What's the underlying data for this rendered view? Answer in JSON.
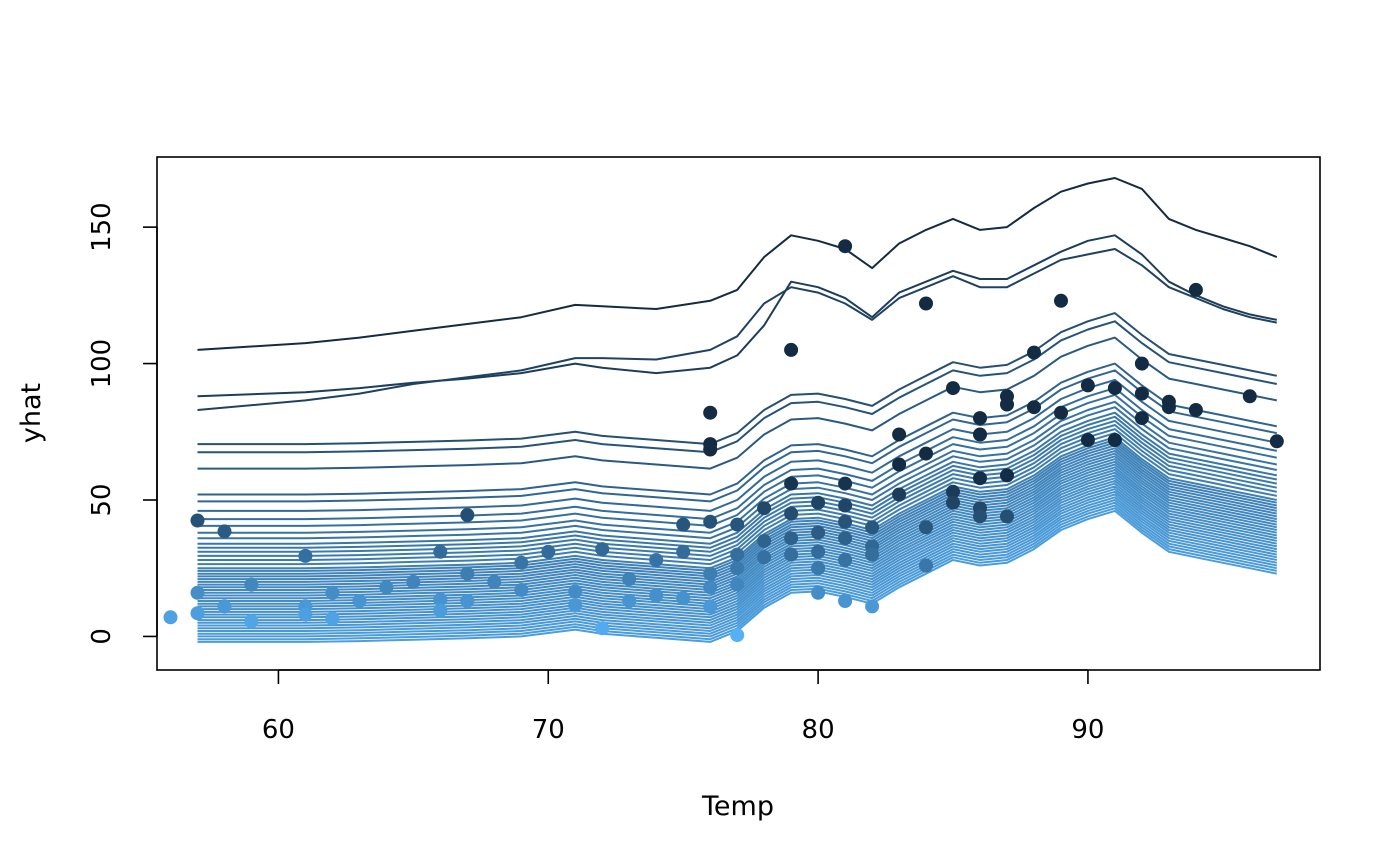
{
  "chart_data": {
    "type": "line",
    "title": "",
    "xlabel": "Temp",
    "ylabel": "yhat",
    "xlim": [
      55.5,
      98.6
    ],
    "ylim": [
      -12.3,
      175.7
    ],
    "xticks": [
      "60",
      "70",
      "80",
      "90"
    ],
    "yticks": [
      "0",
      "50",
      "100",
      "150"
    ],
    "grid": false,
    "legend": "none",
    "colors": {
      "dark": "#132b43",
      "light": "#56b1f7",
      "axis": "#000000"
    },
    "x": [
      57,
      61,
      63,
      65,
      67,
      69,
      71,
      72,
      74,
      76,
      77,
      78,
      79,
      80,
      81,
      82,
      83,
      84,
      85,
      86,
      87,
      88,
      89,
      90,
      91,
      92,
      93,
      94,
      95,
      96,
      97
    ],
    "profile": [
      0,
      0,
      0.3,
      0.8,
      1.3,
      2,
      4.5,
      3,
      1.5,
      0,
      4,
      12.5,
      18,
      18.5,
      16.5,
      14,
      20,
      25,
      30,
      28,
      29,
      34,
      41,
      45,
      48,
      40,
      33,
      31,
      29,
      27,
      25
    ],
    "series_info": "individual conditional expectation curves, one per observation",
    "series": [
      {
        "values": [
          105,
          107.5,
          109.5,
          112,
          114.5,
          117,
          121.5,
          121,
          120,
          123,
          127,
          139,
          147,
          145,
          142,
          135,
          144,
          149,
          153,
          149,
          150,
          157,
          163,
          166,
          168,
          164,
          153,
          149,
          146,
          143,
          139
        ]
      },
      {
        "values": [
          88,
          89.5,
          91,
          93,
          94.5,
          96.5,
          100,
          98.5,
          96.5,
          98.5,
          103,
          114,
          130,
          128,
          124,
          117,
          126,
          130,
          134,
          131,
          131,
          136,
          141,
          145,
          147,
          140,
          130,
          125,
          121,
          118,
          116
        ]
      },
      {
        "values": [
          83,
          86.5,
          89,
          92.5,
          95,
          97.5,
          102,
          102,
          101.5,
          105,
          110,
          122,
          128,
          126,
          122,
          116,
          124,
          128,
          132,
          128,
          128,
          133,
          138,
          140,
          142,
          136,
          128,
          124,
          120,
          117,
          115
        ]
      }
    ],
    "series_offsets": [
      70.5,
      67.5,
      61.5,
      52,
      49.5,
      46,
      43,
      40.5,
      38,
      36,
      34,
      32.5,
      31,
      29.5,
      28,
      26.5,
      25,
      24,
      23,
      22,
      21,
      20,
      19,
      18,
      17,
      16,
      15,
      14,
      13,
      12,
      11,
      10,
      9,
      8,
      7,
      6,
      5,
      4,
      3,
      2,
      1,
      0,
      -1,
      -2
    ],
    "points": [
      {
        "x": 56,
        "y": 7
      },
      {
        "x": 57,
        "y": 42.5
      },
      {
        "x": 57,
        "y": 16
      },
      {
        "x": 57,
        "y": 8.5
      },
      {
        "x": 58,
        "y": 38.5
      },
      {
        "x": 58,
        "y": 11
      },
      {
        "x": 59,
        "y": 19
      },
      {
        "x": 59,
        "y": 5.5
      },
      {
        "x": 61,
        "y": 29.5
      },
      {
        "x": 61,
        "y": 11
      },
      {
        "x": 61,
        "y": 8
      },
      {
        "x": 62,
        "y": 16
      },
      {
        "x": 62,
        "y": 6.5
      },
      {
        "x": 63,
        "y": 13
      },
      {
        "x": 64,
        "y": 18
      },
      {
        "x": 65,
        "y": 20
      },
      {
        "x": 66,
        "y": 31
      },
      {
        "x": 66,
        "y": 13.5
      },
      {
        "x": 66,
        "y": 9.5
      },
      {
        "x": 67,
        "y": 44.5
      },
      {
        "x": 67,
        "y": 23
      },
      {
        "x": 67,
        "y": 13
      },
      {
        "x": 68,
        "y": 20
      },
      {
        "x": 69,
        "y": 27
      },
      {
        "x": 69,
        "y": 17
      },
      {
        "x": 70,
        "y": 31
      },
      {
        "x": 71,
        "y": 16.5
      },
      {
        "x": 71,
        "y": 11.5
      },
      {
        "x": 72,
        "y": 32
      },
      {
        "x": 72,
        "y": 3
      },
      {
        "x": 73,
        "y": 21
      },
      {
        "x": 73,
        "y": 13
      },
      {
        "x": 74,
        "y": 28
      },
      {
        "x": 74,
        "y": 15
      },
      {
        "x": 75,
        "y": 41
      },
      {
        "x": 75,
        "y": 31
      },
      {
        "x": 75,
        "y": 14
      },
      {
        "x": 76,
        "y": 82
      },
      {
        "x": 76,
        "y": 70.5
      },
      {
        "x": 76,
        "y": 68.5
      },
      {
        "x": 76,
        "y": 42
      },
      {
        "x": 76,
        "y": 23
      },
      {
        "x": 76,
        "y": 18
      },
      {
        "x": 76,
        "y": 11
      },
      {
        "x": 77,
        "y": 41
      },
      {
        "x": 77,
        "y": 30
      },
      {
        "x": 77,
        "y": 25
      },
      {
        "x": 77,
        "y": 19
      },
      {
        "x": 77,
        "y": 0.5
      },
      {
        "x": 78,
        "y": 47
      },
      {
        "x": 78,
        "y": 35
      },
      {
        "x": 78,
        "y": 29
      },
      {
        "x": 79,
        "y": 105
      },
      {
        "x": 79,
        "y": 56
      },
      {
        "x": 79,
        "y": 45
      },
      {
        "x": 79,
        "y": 36
      },
      {
        "x": 79,
        "y": 30
      },
      {
        "x": 80,
        "y": 49
      },
      {
        "x": 80,
        "y": 38
      },
      {
        "x": 80,
        "y": 31
      },
      {
        "x": 80,
        "y": 25
      },
      {
        "x": 80,
        "y": 16
      },
      {
        "x": 81,
        "y": 143
      },
      {
        "x": 81,
        "y": 56
      },
      {
        "x": 81,
        "y": 48
      },
      {
        "x": 81,
        "y": 42
      },
      {
        "x": 81,
        "y": 36
      },
      {
        "x": 81,
        "y": 28
      },
      {
        "x": 81,
        "y": 13
      },
      {
        "x": 82,
        "y": 40
      },
      {
        "x": 82,
        "y": 33
      },
      {
        "x": 82,
        "y": 30
      },
      {
        "x": 82,
        "y": 11
      },
      {
        "x": 83,
        "y": 74
      },
      {
        "x": 83,
        "y": 63
      },
      {
        "x": 83,
        "y": 52
      },
      {
        "x": 84,
        "y": 122
      },
      {
        "x": 84,
        "y": 67
      },
      {
        "x": 84,
        "y": 40
      },
      {
        "x": 84,
        "y": 26
      },
      {
        "x": 85,
        "y": 91
      },
      {
        "x": 85,
        "y": 53
      },
      {
        "x": 85,
        "y": 49
      },
      {
        "x": 86,
        "y": 80
      },
      {
        "x": 86,
        "y": 74
      },
      {
        "x": 86,
        "y": 58
      },
      {
        "x": 86,
        "y": 47
      },
      {
        "x": 86,
        "y": 44
      },
      {
        "x": 87,
        "y": 88
      },
      {
        "x": 87,
        "y": 85
      },
      {
        "x": 87,
        "y": 59
      },
      {
        "x": 87,
        "y": 44
      },
      {
        "x": 88,
        "y": 104
      },
      {
        "x": 88,
        "y": 84
      },
      {
        "x": 89,
        "y": 123
      },
      {
        "x": 89,
        "y": 82
      },
      {
        "x": 90,
        "y": 92
      },
      {
        "x": 90,
        "y": 72
      },
      {
        "x": 91,
        "y": 91
      },
      {
        "x": 91,
        "y": 72
      },
      {
        "x": 92,
        "y": 100
      },
      {
        "x": 92,
        "y": 89
      },
      {
        "x": 92,
        "y": 80
      },
      {
        "x": 93,
        "y": 86
      },
      {
        "x": 93,
        "y": 84
      },
      {
        "x": 94,
        "y": 127
      },
      {
        "x": 94,
        "y": 83
      },
      {
        "x": 96,
        "y": 88
      },
      {
        "x": 97,
        "y": 71.5
      }
    ]
  }
}
